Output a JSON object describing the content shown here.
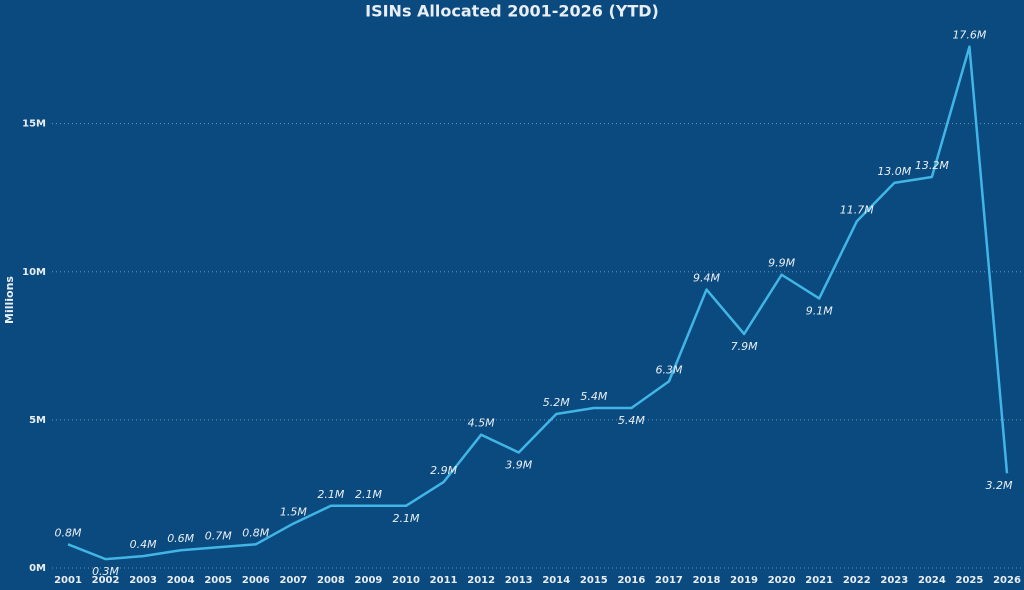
{
  "chart_data": {
    "type": "line",
    "title": "ISINs Allocated 2001-2026 (YTD)",
    "y_label": "Millions",
    "categories": [
      "2001",
      "2002",
      "2003",
      "2004",
      "2005",
      "2006",
      "2007",
      "2008",
      "2009",
      "2010",
      "2011",
      "2012",
      "2013",
      "2014",
      "2015",
      "2016",
      "2017",
      "2018",
      "2019",
      "2020",
      "2021",
      "2022",
      "2023",
      "2024",
      "2025",
      "2026"
    ],
    "series": [
      {
        "name": "ISINs Allocated",
        "color": "#41b6e6",
        "values": [
          0.8,
          0.3,
          0.4,
          0.6,
          0.7,
          0.8,
          1.5,
          2.1,
          2.1,
          2.1,
          2.9,
          4.5,
          3.9,
          5.2,
          5.4,
          5.4,
          6.3,
          9.4,
          7.9,
          9.9,
          9.1,
          11.7,
          13.0,
          13.2,
          17.6,
          3.2
        ],
        "value_labels": [
          "0.8M",
          "0.3M",
          "0.4M",
          "0.6M",
          "0.7M",
          "0.8M",
          "1.5M",
          "2.1M",
          "2.1M",
          "2.1M",
          "2.9M",
          "4.5M",
          "3.9M",
          "5.2M",
          "5.4M",
          "5.4M",
          "6.3M",
          "9.4M",
          "7.9M",
          "9.9M",
          "9.1M",
          "11.7M",
          "13.0M",
          "13.2M",
          "17.6M",
          "3.2M"
        ]
      }
    ],
    "ylim": [
      0,
      18.5
    ],
    "yticks": [
      {
        "value": 0,
        "label": "0M"
      },
      {
        "value": 5,
        "label": "5M"
      },
      {
        "value": 10,
        "label": "10M"
      },
      {
        "value": 15,
        "label": "15M"
      }
    ],
    "grid": true
  }
}
